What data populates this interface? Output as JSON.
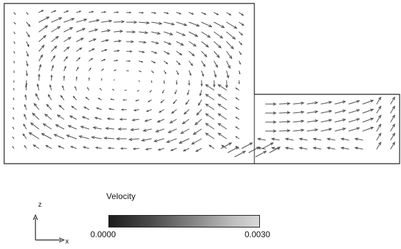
{
  "legend": {
    "title": "Velocity",
    "min_label": "0.0000",
    "max_label": "0.0030",
    "colors": [
      "#1c1c1c",
      "#4a4a4a",
      "#8d8d8d",
      "#bdbdbd",
      "#d8d8d8"
    ]
  },
  "axes": {
    "z_label": "z",
    "x_label": "x"
  },
  "flow": {
    "arrow_color": "#4d4d4d",
    "boundary_color": "#222222",
    "description_color": "#ffffff"
  }
}
